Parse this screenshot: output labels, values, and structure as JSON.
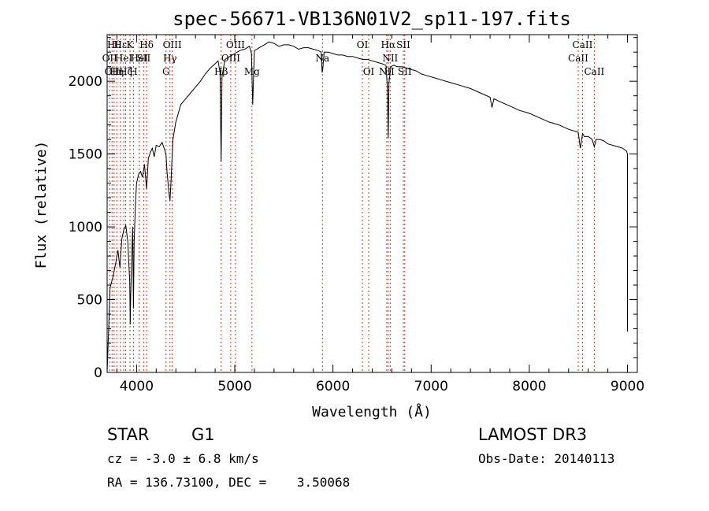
{
  "chart_data": {
    "type": "line",
    "title": "spec-56671-VB136N01V2_sp11-197.fits",
    "xlabel": "Wavelength (Å)",
    "ylabel": "Flux (relative)",
    "xlim": [
      3700,
      9100
    ],
    "ylim": [
      0,
      2320
    ],
    "xticks": [
      4000,
      5000,
      6000,
      7000,
      8000,
      9000
    ],
    "yticks": [
      0,
      500,
      1000,
      1500,
      2000
    ],
    "series": [
      {
        "name": "spectrum",
        "x": [
          3700,
          3730,
          3760,
          3790,
          3810,
          3830,
          3850,
          3870,
          3890,
          3910,
          3930,
          3935,
          3940,
          3950,
          3960,
          3968,
          3975,
          3990,
          4000,
          4020,
          4040,
          4060,
          4080,
          4102,
          4120,
          4140,
          4160,
          4180,
          4200,
          4230,
          4260,
          4290,
          4300,
          4310,
          4330,
          4340,
          4350,
          4370,
          4400,
          4450,
          4500,
          4550,
          4600,
          4650,
          4700,
          4750,
          4800,
          4830,
          4850,
          4861,
          4870,
          4900,
          4950,
          5000,
          5050,
          5100,
          5150,
          5170,
          5183,
          5200,
          5250,
          5300,
          5350,
          5400,
          5450,
          5500,
          5550,
          5600,
          5650,
          5700,
          5750,
          5800,
          5850,
          5880,
          5890,
          5896,
          5910,
          5950,
          6000,
          6050,
          6100,
          6150,
          6200,
          6250,
          6300,
          6350,
          6400,
          6450,
          6500,
          6540,
          6555,
          6563,
          6570,
          6590,
          6620,
          6650,
          6700,
          6750,
          6800,
          6850,
          6900,
          6950,
          7000,
          7100,
          7200,
          7300,
          7400,
          7500,
          7600,
          7620,
          7640,
          7700,
          7800,
          7900,
          8000,
          8100,
          8200,
          8300,
          8400,
          8498,
          8520,
          8542,
          8560,
          8600,
          8640,
          8662,
          8680,
          8720,
          8760,
          8800,
          8850,
          8900,
          8950,
          8990,
          9000,
          9000
        ],
        "y": [
          0,
          580,
          660,
          760,
          840,
          720,
          920,
          980,
          1010,
          900,
          620,
          330,
          520,
          780,
          1000,
          440,
          900,
          1180,
          1300,
          1360,
          1380,
          1340,
          1430,
          1260,
          1470,
          1510,
          1540,
          1480,
          1560,
          1550,
          1580,
          1520,
          1490,
          1380,
          1230,
          1180,
          1300,
          1600,
          1720,
          1840,
          1880,
          1920,
          1960,
          2000,
          2050,
          2090,
          2120,
          2140,
          2060,
          1450,
          2030,
          2150,
          2170,
          2190,
          2210,
          2220,
          2240,
          2190,
          1840,
          2210,
          2230,
          2250,
          2270,
          2260,
          2240,
          2250,
          2250,
          2240,
          2220,
          2230,
          2230,
          2220,
          2210,
          2200,
          2060,
          2080,
          2200,
          2200,
          2190,
          2180,
          2180,
          2170,
          2170,
          2160,
          2150,
          2150,
          2140,
          2130,
          2120,
          2110,
          1950,
          1610,
          1990,
          2100,
          2110,
          2100,
          2100,
          2090,
          2080,
          2070,
          2050,
          2040,
          2030,
          2010,
          1990,
          1970,
          1950,
          1920,
          1890,
          1820,
          1880,
          1860,
          1830,
          1800,
          1780,
          1750,
          1720,
          1700,
          1670,
          1650,
          1540,
          1640,
          1620,
          1620,
          1600,
          1550,
          1600,
          1600,
          1590,
          1570,
          1560,
          1550,
          1540,
          1520,
          1500,
          280
        ]
      }
    ],
    "line_markers": [
      {
        "x": 3726,
        "label": "OII",
        "row": 2
      },
      {
        "x": 3750,
        "label": "OII",
        "row": 3
      },
      {
        "x": 3771,
        "label": "Hθ",
        "row": 1
      },
      {
        "x": 3798,
        "label": "Hη",
        "row": 3
      },
      {
        "x": 3835,
        "label": "Hε",
        "row": 1
      },
      {
        "x": 3869,
        "label": "HeI",
        "row": 2
      },
      {
        "x": 3889,
        "label": "Hζ",
        "row": 3
      },
      {
        "x": 3933,
        "label": "K",
        "row": 1
      },
      {
        "x": 3968,
        "label": "H",
        "row": 3
      },
      {
        "x": 4026,
        "label": "HeI",
        "row": 2
      },
      {
        "x": 4072,
        "label": "SII",
        "row": 2
      },
      {
        "x": 4102,
        "label": "Hδ",
        "row": 1
      },
      {
        "x": 4300,
        "label": "G",
        "row": 3
      },
      {
        "x": 4340,
        "label": "Hγ",
        "row": 2
      },
      {
        "x": 4363,
        "label": "OIII",
        "row": 1
      },
      {
        "x": 4861,
        "label": "Hβ",
        "row": 3
      },
      {
        "x": 4959,
        "label": "OIII",
        "row": 2
      },
      {
        "x": 5007,
        "label": "OIII",
        "row": 1
      },
      {
        "x": 5175,
        "label": "Mg",
        "row": 3
      },
      {
        "x": 5893,
        "label": "Na",
        "row": 2
      },
      {
        "x": 6300,
        "label": "OI",
        "row": 1
      },
      {
        "x": 6364,
        "label": "OI",
        "row": 3
      },
      {
        "x": 6548,
        "label": "NII",
        "row": 3
      },
      {
        "x": 6563,
        "label": "Hα",
        "row": 1
      },
      {
        "x": 6583,
        "label": "NII",
        "row": 2
      },
      {
        "x": 6717,
        "label": "SII",
        "row": 1
      },
      {
        "x": 6731,
        "label": "SII",
        "row": 3
      },
      {
        "x": 8498,
        "label": "CaII",
        "row": 2
      },
      {
        "x": 8542,
        "label": "CaII",
        "row": 1
      },
      {
        "x": 8662,
        "label": "CaII",
        "row": 3
      }
    ]
  },
  "info": {
    "class": "STAR",
    "subclass": "G1",
    "survey": "LAMOST DR3",
    "cz": "cz = -3.0 ± 6.8 km/s",
    "obs_date": "Obs-Date: 20140113",
    "coords": "RA = 136.73100, DEC =    3.50068"
  }
}
